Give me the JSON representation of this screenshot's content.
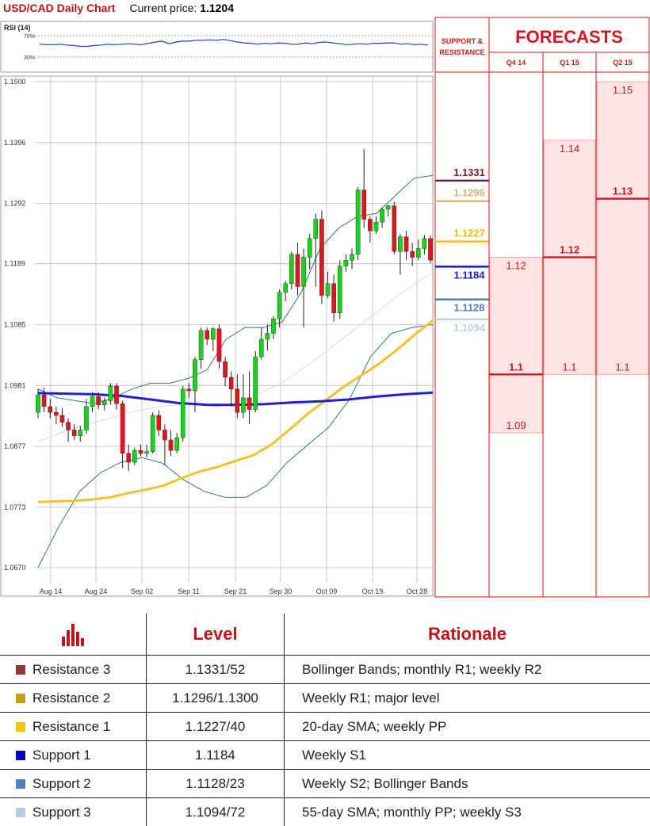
{
  "header": {
    "title": "USD/CAD Daily Chart",
    "price_label": "Current price:",
    "price_value": "1.1204"
  },
  "rsi": {
    "label": "RSI (14)",
    "levels": [
      "70%",
      "30%"
    ]
  },
  "chart_data": {
    "type": "candlestick",
    "title": "USD/CAD Daily Chart",
    "y_ticks": [
      "1.1500",
      "1.1396",
      "1.1292",
      "1.1189",
      "1.1085",
      "1.0981",
      "1.0877",
      "1.0773",
      "1.0670"
    ],
    "ylim": [
      1.067,
      1.15
    ],
    "x_ticks": [
      "Aug 14",
      "Aug 24",
      "Sep 02",
      "Sep 11",
      "Sep 21",
      "Sep 30",
      "Oct 09",
      "Oct 19",
      "Oct 28"
    ],
    "candles": [
      [
        1.0935,
        1.0975,
        1.0925,
        1.0965
      ],
      [
        1.0965,
        1.0978,
        1.0935,
        1.0945
      ],
      [
        1.0945,
        1.0958,
        1.0925,
        1.0935
      ],
      [
        1.0935,
        1.0945,
        1.0915,
        1.093
      ],
      [
        1.093,
        1.0942,
        1.091,
        1.0918
      ],
      [
        1.0918,
        1.0925,
        1.0885,
        1.0905
      ],
      [
        1.0905,
        1.0915,
        1.0888,
        1.0895
      ],
      [
        1.0895,
        1.0912,
        1.0885,
        1.0905
      ],
      [
        1.0905,
        1.0958,
        1.0898,
        1.0945
      ],
      [
        1.0945,
        1.097,
        1.0935,
        1.0962
      ],
      [
        1.0962,
        1.097,
        1.094,
        1.0948
      ],
      [
        1.0948,
        1.096,
        1.0938,
        1.0955
      ],
      [
        1.0955,
        1.0985,
        1.0948,
        1.098
      ],
      [
        1.098,
        1.0985,
        1.094,
        1.095
      ],
      [
        1.095,
        1.0955,
        1.084,
        1.0865
      ],
      [
        1.0865,
        1.088,
        1.0835,
        1.085
      ],
      [
        1.085,
        1.0875,
        1.0845,
        1.087
      ],
      [
        1.087,
        1.088,
        1.086,
        1.0865
      ],
      [
        1.0865,
        1.088,
        1.0858,
        1.0868
      ],
      [
        1.0868,
        1.0935,
        1.0865,
        1.093
      ],
      [
        1.093,
        1.0938,
        1.0895,
        1.0905
      ],
      [
        1.0905,
        1.0915,
        1.0845,
        1.0888
      ],
      [
        1.0888,
        1.0905,
        1.086,
        1.087
      ],
      [
        1.087,
        1.09,
        1.0865,
        1.0892
      ],
      [
        1.0892,
        1.098,
        1.0885,
        1.0975
      ],
      [
        1.0975,
        1.0985,
        1.096,
        1.0972
      ],
      [
        1.0972,
        1.103,
        1.0935,
        1.1025
      ],
      [
        1.1025,
        1.108,
        1.101,
        1.1075
      ],
      [
        1.1075,
        1.108,
        1.105,
        1.106
      ],
      [
        1.106,
        1.108,
        1.104,
        1.1078
      ],
      [
        1.1078,
        1.1085,
        1.101,
        1.1022
      ],
      [
        1.1022,
        1.103,
        1.098,
        1.0995
      ],
      [
        1.0995,
        1.1005,
        1.0945,
        1.0975
      ],
      [
        1.0975,
        1.1,
        1.0925,
        1.0935
      ],
      [
        1.0935,
        1.1,
        1.0925,
        1.096
      ],
      [
        1.096,
        1.1005,
        1.0915,
        1.094
      ],
      [
        1.094,
        1.104,
        1.0935,
        1.103
      ],
      [
        1.103,
        1.108,
        1.1025,
        1.106
      ],
      [
        1.106,
        1.1085,
        1.104,
        1.107
      ],
      [
        1.107,
        1.11,
        1.106,
        1.1095
      ],
      [
        1.1095,
        1.1145,
        1.108,
        1.114
      ],
      [
        1.114,
        1.116,
        1.1125,
        1.1155
      ],
      [
        1.1155,
        1.121,
        1.1145,
        1.1205
      ],
      [
        1.1205,
        1.1225,
        1.1135,
        1.115
      ],
      [
        1.115,
        1.1215,
        1.108,
        1.12
      ],
      [
        1.12,
        1.124,
        1.118,
        1.1232
      ],
      [
        1.1232,
        1.1275,
        1.115,
        1.1265
      ],
      [
        1.1265,
        1.128,
        1.112,
        1.1135
      ],
      [
        1.1135,
        1.1175,
        1.113,
        1.1155
      ],
      [
        1.1155,
        1.117,
        1.109,
        1.1105
      ],
      [
        1.1105,
        1.1195,
        1.1095,
        1.1185
      ],
      [
        1.1185,
        1.1205,
        1.1175,
        1.1195
      ],
      [
        1.1195,
        1.1215,
        1.118,
        1.1205
      ],
      [
        1.1205,
        1.132,
        1.1195,
        1.1315
      ],
      [
        1.1315,
        1.1385,
        1.125,
        1.1265
      ],
      [
        1.1265,
        1.127,
        1.1225,
        1.1245
      ],
      [
        1.1245,
        1.127,
        1.124,
        1.126
      ],
      [
        1.126,
        1.1285,
        1.125,
        1.1282
      ],
      [
        1.1282,
        1.129,
        1.127,
        1.1288
      ],
      [
        1.1288,
        1.1295,
        1.1205,
        1.121
      ],
      [
        1.121,
        1.124,
        1.117,
        1.1235
      ],
      [
        1.1235,
        1.1245,
        1.1195,
        1.121
      ],
      [
        1.121,
        1.1225,
        1.1185,
        1.12
      ],
      [
        1.12,
        1.123,
        1.1195,
        1.1215
      ],
      [
        1.1215,
        1.1238,
        1.1205,
        1.1232
      ],
      [
        1.1232,
        1.1237,
        1.119,
        1.1195
      ]
    ],
    "sma_20": [
      1.0782,
      1.0783,
      1.0784,
      1.0786,
      1.079,
      1.0797,
      1.0803,
      1.081,
      1.0823,
      1.0834,
      1.0842,
      1.0852,
      1.0862,
      1.088,
      1.0905,
      1.0932,
      1.0955,
      1.0978,
      1.0998,
      1.1018,
      1.1042,
      1.1068,
      1.1092
    ],
    "sma_55": [
      1.0968,
      1.0967,
      1.0966,
      1.0963,
      1.0957,
      1.0951,
      1.0948,
      1.0948,
      1.0949,
      1.0952,
      1.0954,
      1.0957,
      1.0962,
      1.0966,
      1.0969
    ],
    "bollinger_upper": [
      1.0975,
      1.096,
      1.0955,
      1.095,
      1.096,
      1.0975,
      1.0985,
      1.0985,
      1.0993,
      1.1008,
      1.106,
      1.108,
      1.108,
      1.109,
      1.114,
      1.1215,
      1.125,
      1.127,
      1.1275,
      1.1305,
      1.1335,
      1.134
    ],
    "bollinger_lower": [
      1.067,
      1.074,
      1.08,
      1.0832,
      1.085,
      1.0858,
      1.0848,
      1.082,
      1.08,
      1.079,
      1.079,
      1.081,
      1.085,
      1.088,
      1.091,
      1.0958,
      1.103,
      1.107,
      1.108,
      1.1085
    ],
    "bollinger_mid": [
      1.0885,
      1.0905,
      1.092,
      1.0935,
      1.0945,
      1.095,
      1.0945,
      1.096,
      1.0985,
      1.102,
      1.106,
      1.11,
      1.114,
      1.1175
    ],
    "sr_levels": [
      {
        "label": "1.1331",
        "value": 1.1331,
        "color": "#6b1e3a"
      },
      {
        "label": "1.1296",
        "value": 1.1296,
        "color": "#d8b470"
      },
      {
        "label": "1.1227",
        "value": 1.1227,
        "color": "#ecc100"
      },
      {
        "label": "1.1184",
        "value": 1.1184,
        "color": "#1a1ad0"
      },
      {
        "label": "1.1128",
        "value": 1.1128,
        "color": "#4e82a4"
      },
      {
        "label": "1.1094",
        "value": 1.1094,
        "color": "#b8d2e0"
      }
    ],
    "sr_header": "SUPPORT & RESISTANCE",
    "forecasts": {
      "title": "FORECASTS",
      "quarters": [
        "Q4 14",
        "Q1 15",
        "Q2 15"
      ],
      "values": [
        {
          "high": "1.12",
          "mid": "1.1",
          "low": "1.09",
          "high_v": 1.12,
          "mid_v": 1.1,
          "low_v": 1.09
        },
        {
          "high": "1.14",
          "mid": "1.12",
          "low": "1.1",
          "high_v": 1.14,
          "mid_v": 1.12,
          "low_v": 1.1
        },
        {
          "high": "1.15",
          "mid": "1.13",
          "low": "1.1",
          "high_v": 1.15,
          "mid_v": 1.13,
          "low_v": 1.1
        }
      ]
    }
  },
  "table": {
    "headers": [
      "Level",
      "Rationale"
    ],
    "rows": [
      {
        "name": "Resistance 3",
        "color": "#943634",
        "level": "1.1331/52",
        "rationale": "Bollinger Bands; monthly R1; weekly R2"
      },
      {
        "name": "Resistance 2",
        "color": "#c7a100",
        "level": "1.1296/1.1300",
        "rationale": "Weekly R1; major level"
      },
      {
        "name": "Resistance 1",
        "color": "#f2c700",
        "level": "1.1227/40",
        "rationale": "20-day SMA; weekly PP"
      },
      {
        "name": "Support 1",
        "color": "#0000c8",
        "level": "1.1184",
        "rationale": "Weekly S1"
      },
      {
        "name": "Support 2",
        "color": "#4f81bd",
        "level": "1.1128/23",
        "rationale": "Weekly S2; Bollinger Bands"
      },
      {
        "name": "Support 3",
        "color": "#b8cce4",
        "level": "1.1094/72",
        "rationale": "55-day SMA; monthly PP; weekly S3"
      }
    ]
  }
}
